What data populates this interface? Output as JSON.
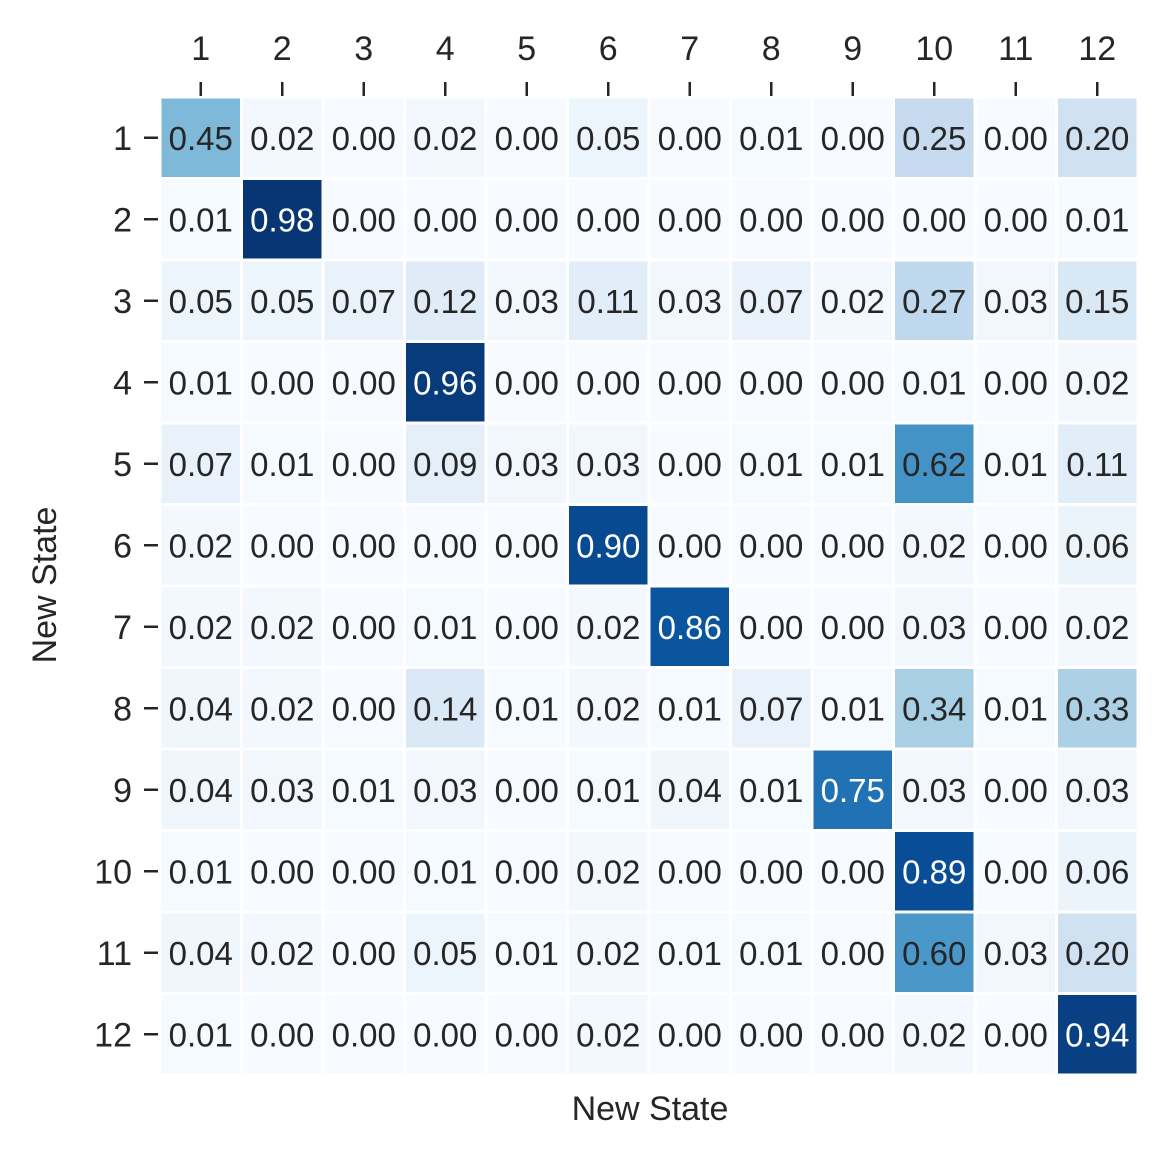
{
  "chart_data": {
    "type": "heatmap",
    "title": "",
    "xlabel": "New State",
    "ylabel": "New State",
    "x_tick_position": "top",
    "colormap": "Blues",
    "value_range": [
      0,
      1
    ],
    "annotation_format": "2 decimals",
    "x_categories": [
      "1",
      "2",
      "3",
      "4",
      "5",
      "6",
      "7",
      "8",
      "9",
      "10",
      "11",
      "12"
    ],
    "y_categories": [
      "1",
      "2",
      "3",
      "4",
      "5",
      "6",
      "7",
      "8",
      "9",
      "10",
      "11",
      "12"
    ],
    "values": [
      [
        0.45,
        0.02,
        0.0,
        0.02,
        0.0,
        0.05,
        0.0,
        0.01,
        0.0,
        0.25,
        0.0,
        0.2
      ],
      [
        0.01,
        0.98,
        0.0,
        0.0,
        0.0,
        0.0,
        0.0,
        0.0,
        0.0,
        0.0,
        0.0,
        0.01
      ],
      [
        0.05,
        0.05,
        0.07,
        0.12,
        0.03,
        0.11,
        0.03,
        0.07,
        0.02,
        0.27,
        0.03,
        0.15
      ],
      [
        0.01,
        0.0,
        0.0,
        0.96,
        0.0,
        0.0,
        0.0,
        0.0,
        0.0,
        0.01,
        0.0,
        0.02
      ],
      [
        0.07,
        0.01,
        0.0,
        0.09,
        0.03,
        0.03,
        0.0,
        0.01,
        0.01,
        0.62,
        0.01,
        0.11
      ],
      [
        0.02,
        0.0,
        0.0,
        0.0,
        0.0,
        0.9,
        0.0,
        0.0,
        0.0,
        0.02,
        0.0,
        0.06
      ],
      [
        0.02,
        0.02,
        0.0,
        0.01,
        0.0,
        0.02,
        0.86,
        0.0,
        0.0,
        0.03,
        0.0,
        0.02
      ],
      [
        0.04,
        0.02,
        0.0,
        0.14,
        0.01,
        0.02,
        0.01,
        0.07,
        0.01,
        0.34,
        0.01,
        0.33
      ],
      [
        0.04,
        0.03,
        0.01,
        0.03,
        0.0,
        0.01,
        0.04,
        0.01,
        0.75,
        0.03,
        0.0,
        0.03
      ],
      [
        0.01,
        0.0,
        0.0,
        0.01,
        0.0,
        0.02,
        0.0,
        0.0,
        0.0,
        0.89,
        0.0,
        0.06
      ],
      [
        0.04,
        0.02,
        0.0,
        0.05,
        0.01,
        0.02,
        0.01,
        0.01,
        0.0,
        0.6,
        0.03,
        0.2
      ],
      [
        0.01,
        0.0,
        0.0,
        0.0,
        0.0,
        0.02,
        0.0,
        0.0,
        0.0,
        0.02,
        0.0,
        0.94
      ]
    ],
    "colors": {
      "text_dark": "#262626",
      "text_light": "#ffffff",
      "cell_border": "#ffffff",
      "tick": "#262626"
    }
  }
}
